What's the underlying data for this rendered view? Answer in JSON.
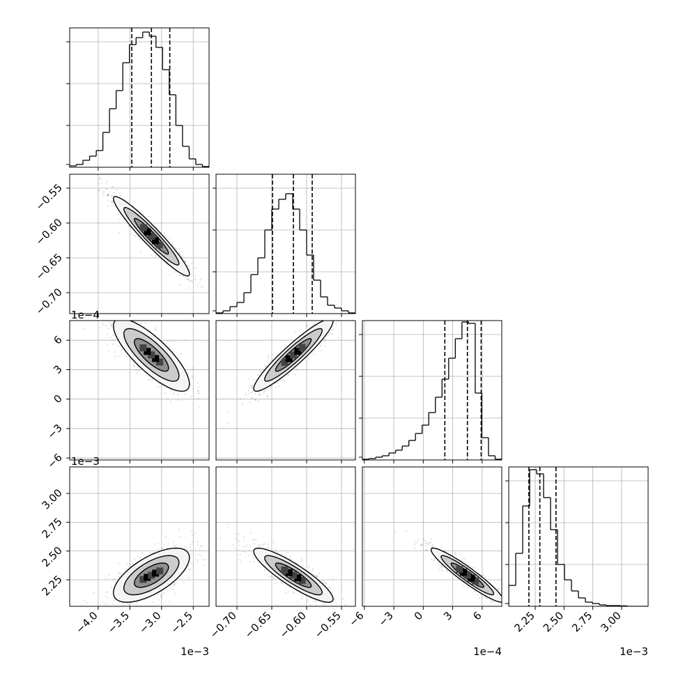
{
  "chart_data": {
    "type": "corner",
    "title": "",
    "parameters": [
      {
        "range": [
          -0.00445,
          -0.00225
        ],
        "ticks": [
          -4.0,
          -3.5,
          -3.0,
          -2.5
        ],
        "tick_labels": [
          "−4.0",
          "−3.5",
          "−3.0",
          "−2.5"
        ],
        "offset_label": "1e−3",
        "scale": 0.001
      },
      {
        "range": [
          -0.73,
          -0.53
        ],
        "ticks": [
          -0.7,
          -0.65,
          -0.6,
          -0.55
        ],
        "tick_labels": [
          "−0.70",
          "−0.65",
          "−0.60",
          "−0.55"
        ],
        "offset_label": "",
        "scale": 1
      },
      {
        "range": [
          -0.00062,
          0.0008
        ],
        "ticks": [
          -6,
          -3,
          0,
          3,
          6
        ],
        "tick_labels": [
          "−6",
          "−3",
          "0",
          "3",
          "6"
        ],
        "offset_label": "1e−4",
        "scale": 0.0001
      },
      {
        "range": [
          0.00202,
          0.00323
        ],
        "ticks": [
          2.25,
          2.5,
          2.75,
          3.0
        ],
        "tick_labels": [
          "2.25",
          "2.50",
          "2.75",
          "3.00"
        ],
        "offset_label": "1e−3",
        "scale": 0.001
      }
    ],
    "histograms": [
      {
        "parameter": 0,
        "counts": [
          0.01,
          0.02,
          0.05,
          0.08,
          0.12,
          0.25,
          0.42,
          0.55,
          0.75,
          0.88,
          0.93,
          0.97,
          0.94,
          0.86,
          0.7,
          0.52,
          0.3,
          0.15,
          0.06,
          0.02,
          0.005
        ],
        "quantiles": [
          -0.00347,
          -0.00316,
          -0.00287
        ]
      },
      {
        "parameter": 1,
        "counts": [
          0.005,
          0.02,
          0.05,
          0.08,
          0.15,
          0.28,
          0.4,
          0.6,
          0.75,
          0.82,
          0.86,
          0.75,
          0.6,
          0.42,
          0.24,
          0.12,
          0.06,
          0.04,
          0.02,
          0.005
        ],
        "quantiles": [
          -0.649,
          -0.619,
          -0.592
        ]
      },
      {
        "parameter": 2,
        "counts": [
          0.005,
          0.01,
          0.02,
          0.03,
          0.05,
          0.07,
          0.1,
          0.14,
          0.19,
          0.25,
          0.34,
          0.45,
          0.58,
          0.73,
          0.87,
          0.99,
          0.98,
          0.48,
          0.16,
          0.03,
          0.005
        ],
        "quantiles": [
          0.00022,
          0.00045,
          0.00059
        ]
      },
      {
        "parameter": 3,
        "counts": [
          0.15,
          0.38,
          0.72,
          0.98,
          0.95,
          0.78,
          0.55,
          0.3,
          0.19,
          0.11,
          0.06,
          0.03,
          0.02,
          0.01,
          0.005,
          0.005,
          0.003,
          0.0,
          0.0,
          0.0
        ],
        "quantiles": [
          0.002195,
          0.00229,
          0.00243
        ]
      }
    ],
    "correlations": [
      {
        "x": 0,
        "y": 1,
        "rho": -0.95
      },
      {
        "x": 0,
        "y": 2,
        "rho": -0.8
      },
      {
        "x": 1,
        "y": 2,
        "rho": 0.93
      },
      {
        "x": 0,
        "y": 3,
        "rho": 0.65
      },
      {
        "x": 1,
        "y": 3,
        "rho": -0.88
      },
      {
        "x": 2,
        "y": 3,
        "rho": -0.94
      }
    ],
    "grid": true
  }
}
